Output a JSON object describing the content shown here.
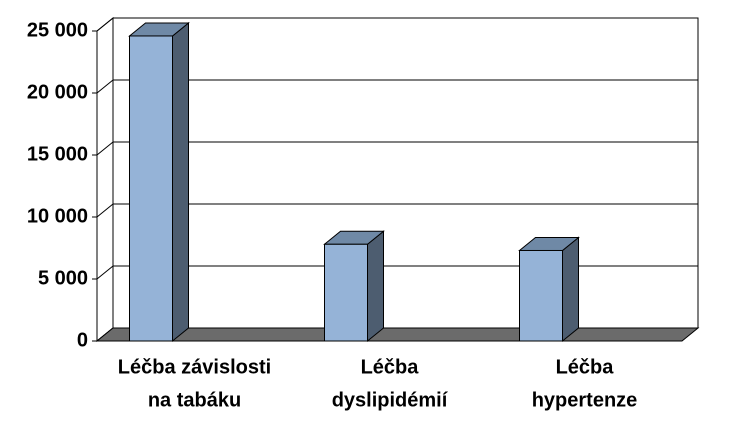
{
  "chart_data": {
    "type": "bar3d",
    "categories": [
      [
        "Léčba závislosti",
        "na tabáku"
      ],
      [
        "Léčba",
        "dyslipidémií"
      ],
      [
        "Léčba",
        "hypertenze"
      ]
    ],
    "values": [
      24600,
      7800,
      7300
    ],
    "color": "#95b3d7",
    "ylim": [
      0,
      25000
    ],
    "yticks": [
      0,
      {
        "value": 5000,
        "label": "5 000"
      },
      {
        "value": 10000,
        "label": "10 000"
      },
      {
        "value": 15000,
        "label": "15 000"
      },
      {
        "value": 20000,
        "label": "20 000"
      },
      {
        "value": 25000,
        "label": "25 000"
      }
    ],
    "grid": true
  }
}
